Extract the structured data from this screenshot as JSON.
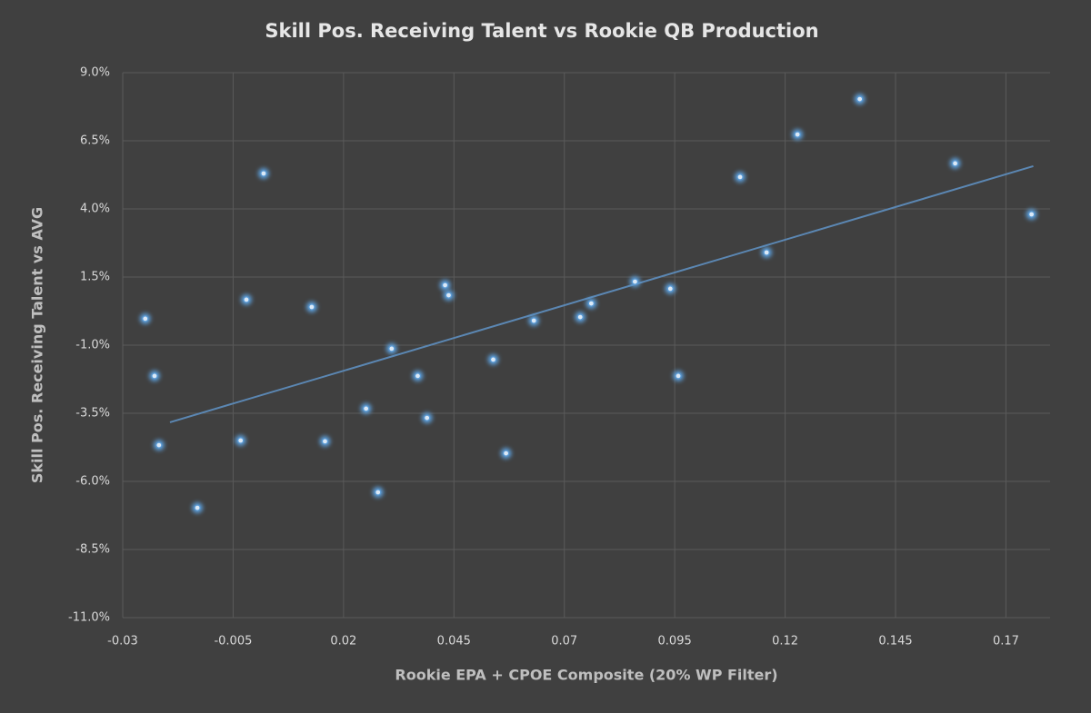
{
  "chart_data": {
    "type": "scatter",
    "title": "Skill Pos. Receiving Talent vs Rookie QB Production",
    "x_label": "Rookie EPA + CPOE Composite (20% WP Filter)",
    "y_label": "Skill Pos. Receiving Talent vs AVG",
    "x": [
      -0.0249,
      -0.0228,
      -0.0218,
      -0.0131,
      -0.0033,
      -0.002,
      0.0019,
      0.0128,
      0.0158,
      0.0251,
      0.0278,
      0.0309,
      0.0368,
      0.0389,
      0.043,
      0.0438,
      0.0539,
      0.0568,
      0.0631,
      0.0736,
      0.0761,
      0.086,
      0.094,
      0.0958,
      0.1098,
      0.1158,
      0.1228,
      0.1369,
      0.1585,
      0.1758
    ],
    "y": [
      -0.03,
      -2.13,
      -4.67,
      -6.97,
      -4.5,
      0.67,
      5.3,
      0.4,
      -4.53,
      -3.33,
      -6.4,
      -1.13,
      -2.13,
      -3.67,
      1.2,
      0.83,
      -1.53,
      -4.97,
      -0.1,
      0.03,
      0.53,
      1.33,
      1.07,
      -2.13,
      5.17,
      2.4,
      6.73,
      8.03,
      5.67,
      3.8
    ],
    "color": "#5b9bd5",
    "trendline": {
      "x": [
        -0.0193,
        0.1762
      ],
      "y": [
        -3.83,
        5.57
      ],
      "color": "#5b87b3"
    },
    "xlim": [
      -0.03,
      0.18
    ],
    "xticks": [
      -0.03,
      -0.005,
      0.02,
      0.045,
      0.07,
      0.095,
      0.12,
      0.145,
      0.17
    ],
    "ylim": [
      -11,
      9
    ],
    "yticks": [
      {
        "value": -11,
        "label": "-11.0%"
      },
      {
        "value": -8.5,
        "label": "-8.5%"
      },
      {
        "value": -6,
        "label": "-6.0%"
      },
      {
        "value": -3.5,
        "label": "-3.5%"
      },
      {
        "value": -1,
        "label": "-1.0%"
      },
      {
        "value": 1.5,
        "label": "1.5%"
      },
      {
        "value": 4,
        "label": "4.0%"
      },
      {
        "value": 6.5,
        "label": "6.5%"
      },
      {
        "value": 9,
        "label": "9.0%"
      }
    ],
    "grid": true
  }
}
